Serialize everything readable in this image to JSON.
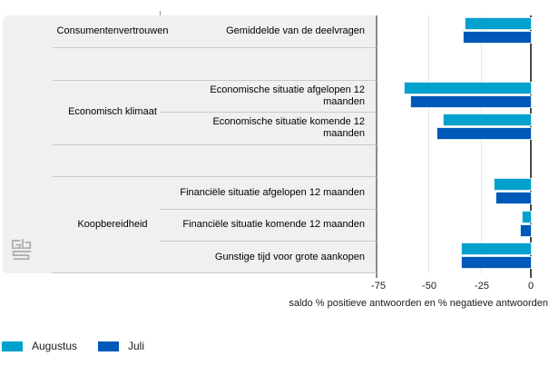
{
  "chart_data": {
    "type": "bar",
    "orientation": "horizontal",
    "xlabel": "saldo % positieve antwoorden en % negatieve antwoorden",
    "xlim": [
      -75,
      0
    ],
    "x_ticks": [
      "-75",
      "-50",
      "-25",
      "0"
    ],
    "grid": true,
    "legend_position": "bottom-left",
    "series_names": [
      "Augustus",
      "Juli"
    ],
    "series_colors": {
      "augustus": "#00a1cd",
      "juli": "#0058b8"
    },
    "groups": [
      {
        "label": "Consumentenvertrouwen",
        "items": [
          {
            "label": "Gemiddelde van de deelvragen",
            "lines": [
              "Gemiddelde van de deelvragen"
            ],
            "values": {
              "augustus": -32,
              "juli": -33
            }
          }
        ]
      },
      {
        "label": "Economisch klimaat",
        "items": [
          {
            "label": "Economische situatie afgelopen 12 maanden",
            "lines": [
              "Economische situatie afgelopen 12",
              "maanden"
            ],
            "values": {
              "augustus": -62,
              "juli": -59
            }
          },
          {
            "label": "Economische situatie komende 12 maanden",
            "lines": [
              "Economische situatie komende 12",
              "maanden"
            ],
            "values": {
              "augustus": -43,
              "juli": -46
            }
          }
        ]
      },
      {
        "label": "Koopbereidheid",
        "items": [
          {
            "label": "Financiële situatie afgelopen 12 maanden",
            "lines": [
              "Financiële situatie afgelopen 12 maanden"
            ],
            "values": {
              "augustus": -18,
              "juli": -17
            }
          },
          {
            "label": "Financiële situatie komende 12 maanden",
            "lines": [
              "Financiële situatie komende 12 maanden"
            ],
            "values": {
              "augustus": -4,
              "juli": -5
            }
          },
          {
            "label": "Gunstige tijd voor grote aankopen",
            "lines": [
              "Gunstige tijd voor grote aankopen"
            ],
            "values": {
              "augustus": -34,
              "juli": -34
            }
          }
        ]
      }
    ]
  },
  "legend": {
    "items": [
      {
        "label": "Augustus",
        "color": "#00a1cd"
      },
      {
        "label": "Juli",
        "color": "#0058b8"
      }
    ]
  },
  "branding": {
    "logo": "cbs-logo"
  },
  "palette": {
    "panel_bg": "#f0f0f0",
    "zero_axis": "#4a4a4a",
    "gridline": "#e7e7e7",
    "separator": "#c9c9c9"
  }
}
